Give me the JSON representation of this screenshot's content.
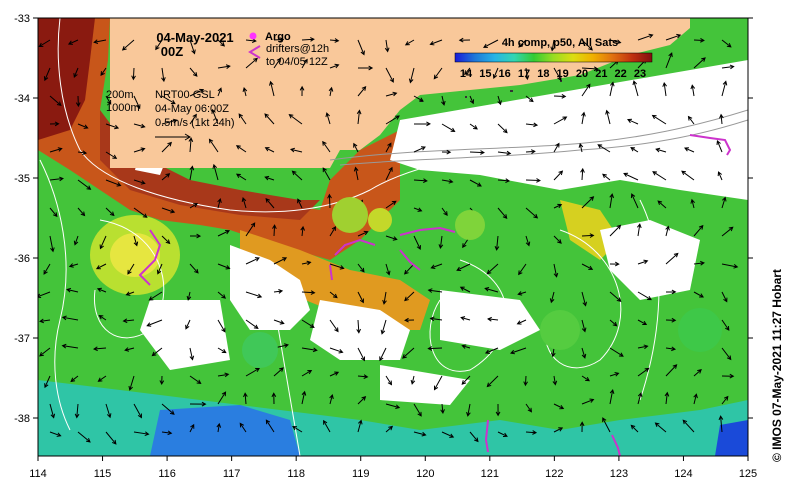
{
  "title": {
    "date": "04-May-2021",
    "time": "00Z"
  },
  "legend": {
    "argo_label": "Argo",
    "drifters_label": "drifters@12h",
    "drifters_sub": "to 04/05 12Z",
    "argo_color": "#ff33ff",
    "drifter_color": "#cc33cc"
  },
  "colorbar": {
    "title": "4h comp, p50, All Sats",
    "ticks": [
      "14",
      "15",
      "16",
      "17",
      "18",
      "19",
      "20",
      "21",
      "22",
      "23"
    ],
    "colors": [
      "#1a1ad9",
      "#1f77d9",
      "#26b3e6",
      "#33d6b3",
      "#33cc33",
      "#99dd22",
      "#dddd11",
      "#f0b000",
      "#e07010",
      "#c03010",
      "#801010"
    ]
  },
  "contours": {
    "line1": "200m",
    "line2": "1000m"
  },
  "currents": {
    "source": "NRT00 GSL",
    "date": "04-May 06:00Z",
    "scale": "0.5m/s (1kt 24h)"
  },
  "axes": {
    "x_ticks": [
      "114",
      "115",
      "116",
      "117",
      "118",
      "119",
      "120",
      "121",
      "122",
      "123",
      "124",
      "125"
    ],
    "y_ticks": [
      "-33",
      "-34",
      "-35",
      "-36",
      "-37",
      "-38"
    ]
  },
  "credit": "© IMOS 07-May-2021 11:27 Hobart",
  "colors": {
    "land": "#f9c89a",
    "cloud": "#ffffff",
    "arrow": "#000000",
    "contour": "#ffffff"
  }
}
